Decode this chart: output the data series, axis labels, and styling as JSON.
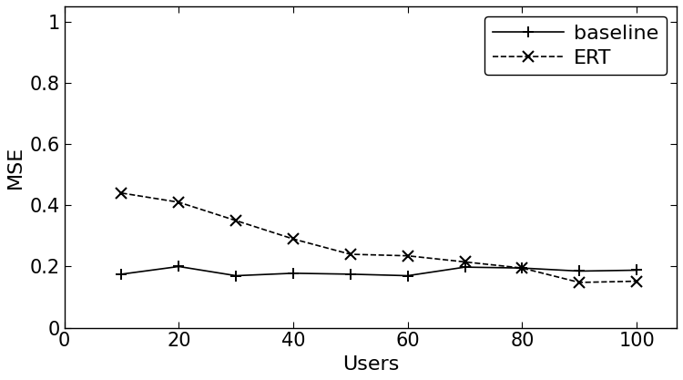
{
  "users": [
    10,
    20,
    30,
    40,
    50,
    60,
    70,
    80,
    90,
    100
  ],
  "baseline": [
    0.175,
    0.2,
    0.17,
    0.178,
    0.175,
    0.17,
    0.198,
    0.195,
    0.185,
    0.188
  ],
  "ert": [
    0.44,
    0.41,
    0.35,
    0.29,
    0.24,
    0.235,
    0.215,
    0.195,
    0.148,
    0.152
  ],
  "xlabel": "Users",
  "ylabel": "MSE",
  "xlim": [
    0,
    107
  ],
  "ylim": [
    0,
    1.05
  ],
  "xticks": [
    0,
    20,
    40,
    60,
    80,
    100
  ],
  "yticks": [
    0,
    0.2,
    0.4,
    0.6,
    0.8,
    1
  ],
  "ytick_labels": [
    "0",
    "0.2",
    "0.4",
    "0.6",
    "0.8",
    "1"
  ],
  "legend_labels": [
    "baseline",
    "ERT"
  ],
  "baseline_color": "#000000",
  "ert_color": "#000000",
  "background_color": "#ffffff",
  "linewidth": 1.2,
  "fontsize": 16,
  "tick_fontsize": 15
}
